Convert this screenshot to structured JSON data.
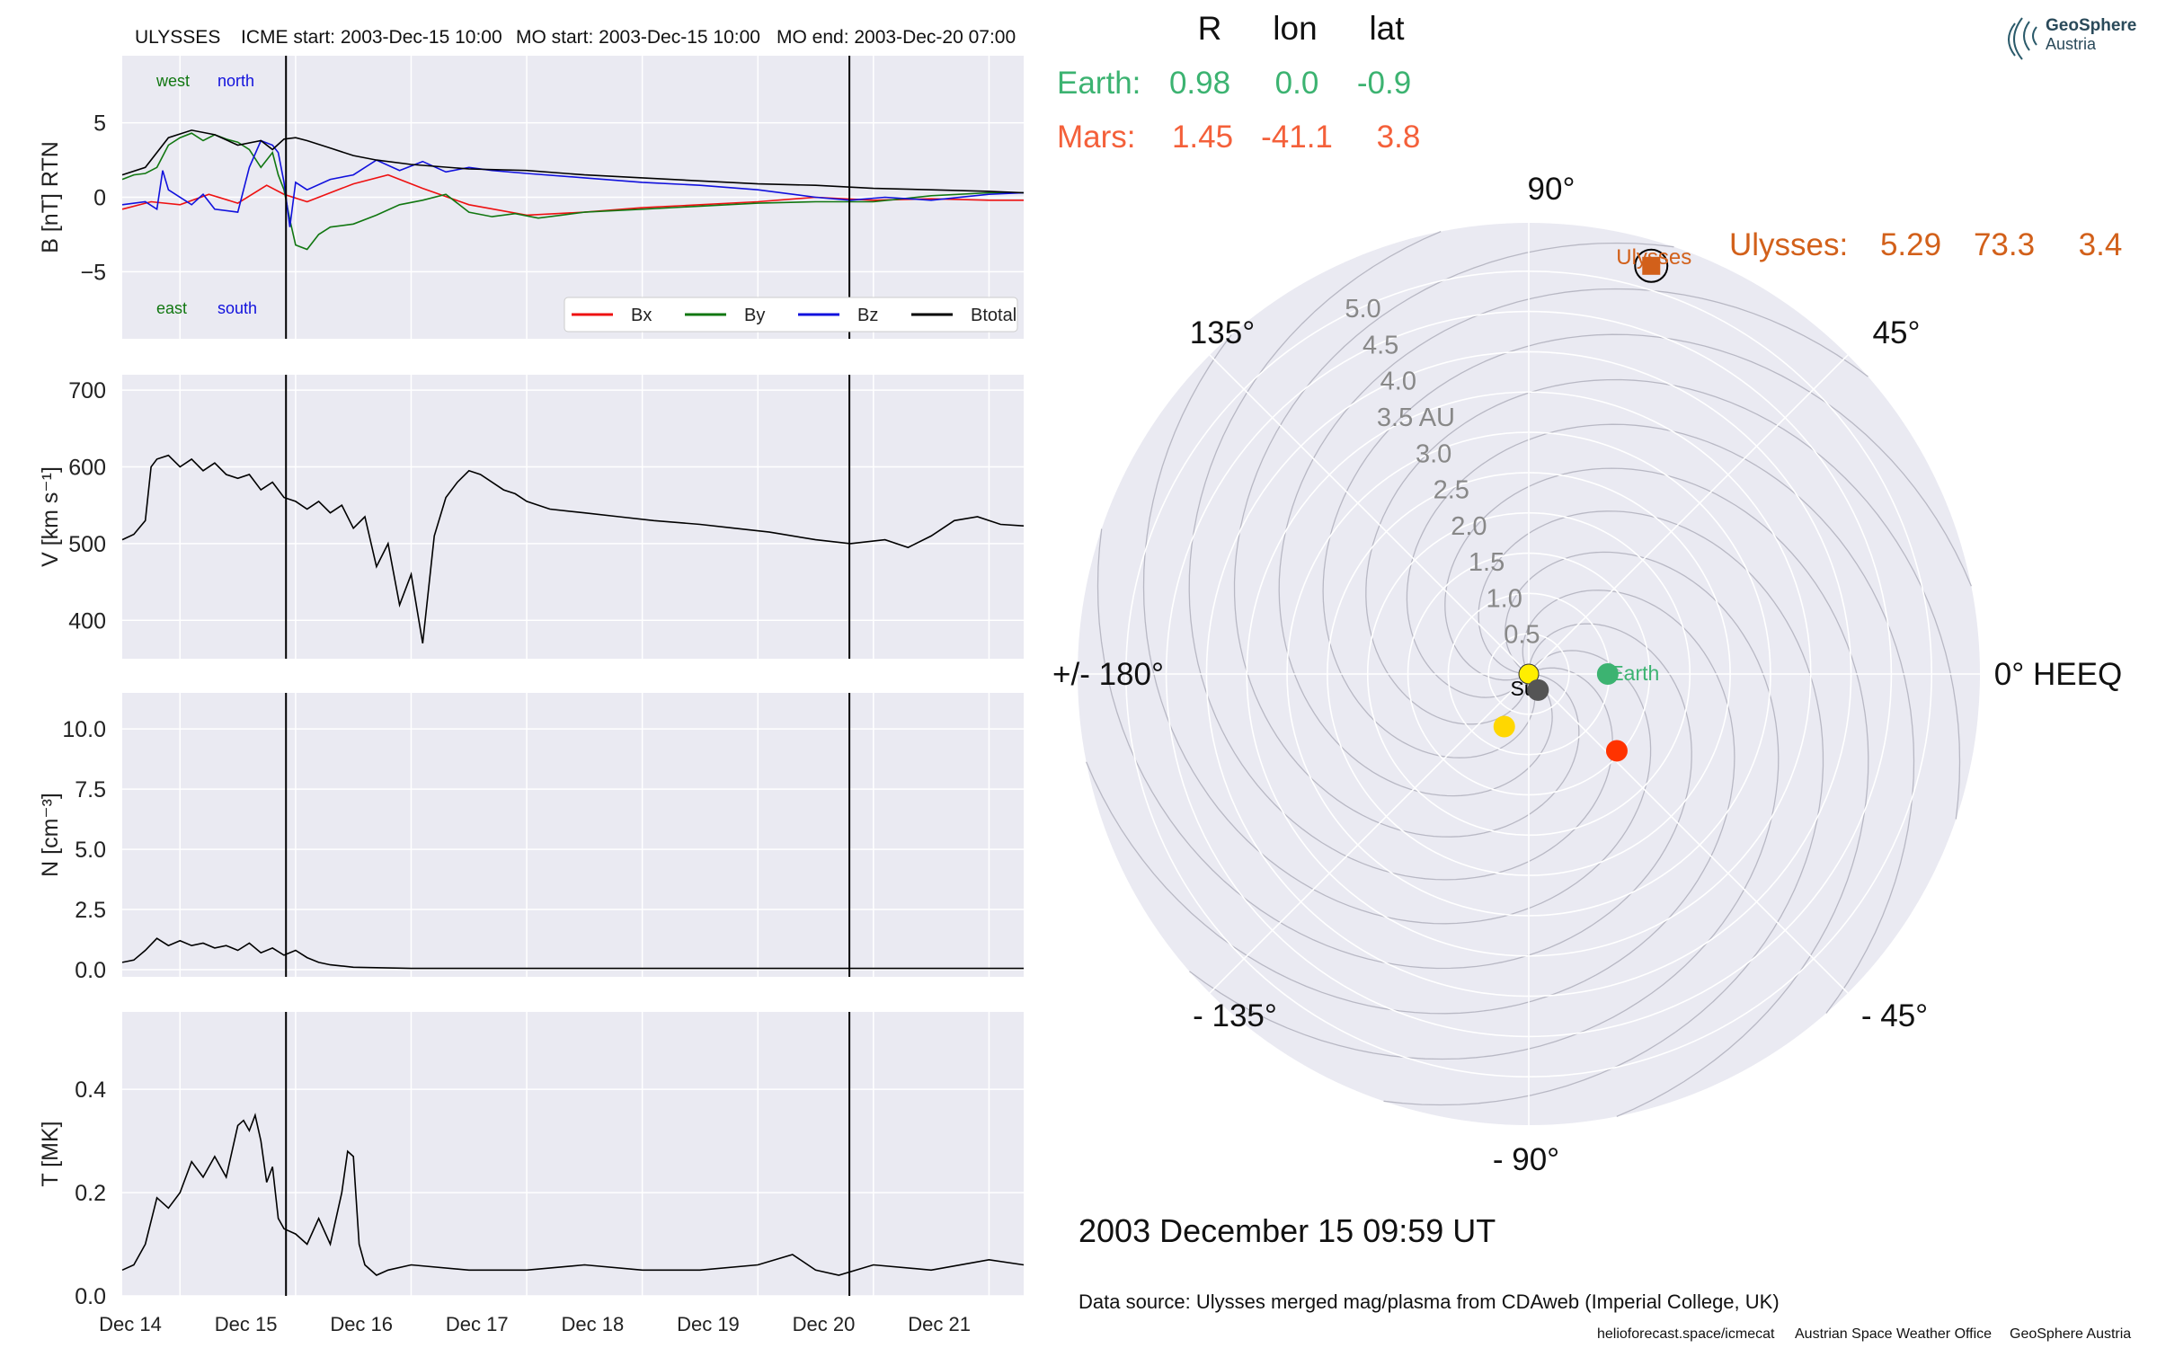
{
  "header": {
    "spacecraft": "ULYSSES",
    "icme_start": "ICME start: 2003-Dec-15 10:00",
    "mo_start": "MO start: 2003-Dec-15 10:00",
    "mo_end": "MO end: 2003-Dec-20 07:00"
  },
  "colors": {
    "bx": "#ee1111",
    "by": "#117711",
    "bz": "#1111dd",
    "btotal": "#000000",
    "earth": "#3cb371",
    "mars": "#f4603a",
    "ulysses": "#d2601a",
    "sun": "#ffee00",
    "panel_bg": "#eaeaf2",
    "grid": "#ffffff"
  },
  "logo": {
    "line1": "GeoSphere",
    "line2": "Austria"
  },
  "positions_table": {
    "headers": [
      "R",
      "lon",
      "lat"
    ],
    "earth": {
      "name": "Earth:",
      "R": "0.98",
      "lon": "0.0",
      "lat": "-0.9"
    },
    "mars": {
      "name": "Mars:",
      "R": "1.45",
      "lon": "-41.1",
      "lat": "3.8"
    },
    "ulysses": {
      "name": "Ulysses:",
      "R": "5.29",
      "lon": "73.3",
      "lat": "3.4"
    }
  },
  "timestamp": "2003 December 15  09:59 UT",
  "data_source": "Data source: Ulysses merged mag/plasma from CDAweb (Imperial College, UK)",
  "footer": {
    "site": "helioforecast.space/icmecat",
    "office": "Austrian Space Weather Office",
    "org": "GeoSphere Austria"
  },
  "chart_data": [
    {
      "type": "line",
      "ylabel": "B [nT] RTN",
      "ylim": [
        -9.5,
        9.5
      ],
      "yticks": [
        -5,
        0,
        5
      ],
      "ytick_labels": [
        "−5",
        "0",
        "5"
      ],
      "annotations": [
        "west",
        "north",
        "east",
        "south"
      ],
      "legend": [
        "Bx",
        "By",
        "Bz",
        "Btotal"
      ],
      "legend_position": "bottom-right",
      "x_range": [
        0,
        7.8
      ],
      "vlines": [
        1.417,
        6.292
      ],
      "series": [
        {
          "name": "Bx",
          "x": [
            0,
            0.25,
            0.5,
            0.75,
            1.0,
            1.25,
            1.4,
            1.6,
            1.8,
            2.0,
            2.3,
            2.6,
            3.0,
            3.5,
            4.0,
            4.5,
            5.0,
            5.5,
            6.0,
            6.5,
            7.0,
            7.5,
            7.8
          ],
          "y": [
            -0.8,
            -0.3,
            -0.5,
            0.2,
            -0.4,
            0.8,
            0.2,
            -0.3,
            0.3,
            0.9,
            1.5,
            0.6,
            -0.5,
            -1.2,
            -1.0,
            -0.7,
            -0.5,
            -0.3,
            0.0,
            -0.2,
            -0.1,
            -0.2,
            -0.2
          ]
        },
        {
          "name": "By",
          "x": [
            0,
            0.1,
            0.2,
            0.3,
            0.4,
            0.5,
            0.6,
            0.7,
            0.8,
            0.9,
            1.0,
            1.1,
            1.2,
            1.3,
            1.35,
            1.4,
            1.45,
            1.5,
            1.6,
            1.7,
            1.8,
            2.0,
            2.2,
            2.4,
            2.6,
            2.8,
            3.0,
            3.2,
            3.4,
            3.6,
            3.8,
            4.0,
            4.5,
            5.0,
            5.5,
            6.0,
            6.5,
            7.0,
            7.5,
            7.8
          ],
          "y": [
            1.2,
            1.5,
            1.6,
            2.0,
            3.5,
            4.0,
            4.3,
            3.8,
            4.2,
            3.9,
            3.7,
            3.2,
            2.0,
            3.0,
            1.5,
            0.5,
            -1.5,
            -3.2,
            -3.5,
            -2.5,
            -2.0,
            -1.8,
            -1.2,
            -0.5,
            -0.2,
            0.2,
            -1.0,
            -1.3,
            -1.1,
            -1.4,
            -1.2,
            -1.0,
            -0.8,
            -0.6,
            -0.4,
            -0.3,
            -0.3,
            0.1,
            0.3,
            0.3
          ]
        },
        {
          "name": "Bz",
          "x": [
            0,
            0.2,
            0.3,
            0.35,
            0.4,
            0.6,
            0.7,
            0.8,
            1.0,
            1.1,
            1.2,
            1.3,
            1.35,
            1.4,
            1.45,
            1.5,
            1.6,
            1.8,
            2.0,
            2.2,
            2.4,
            2.6,
            2.8,
            3.0,
            3.2,
            3.5,
            4.0,
            4.5,
            5.0,
            5.5,
            6.0,
            6.3,
            6.6,
            7.0,
            7.5,
            7.8
          ],
          "y": [
            -0.5,
            -0.3,
            -0.8,
            1.8,
            0.5,
            -0.5,
            0.2,
            -0.8,
            -1.0,
            2.0,
            3.8,
            3.5,
            3.0,
            1.0,
            -2.0,
            1.0,
            0.5,
            1.2,
            1.5,
            2.5,
            1.8,
            2.4,
            1.7,
            2.0,
            1.8,
            1.6,
            1.3,
            1.0,
            0.8,
            0.5,
            0.0,
            -0.2,
            0.0,
            -0.2,
            0.2,
            0.3
          ]
        },
        {
          "name": "Btotal",
          "x": [
            0,
            0.2,
            0.4,
            0.6,
            0.8,
            1.0,
            1.2,
            1.3,
            1.4,
            1.5,
            1.6,
            1.8,
            2.0,
            2.2,
            2.5,
            3.0,
            3.5,
            4.0,
            4.5,
            5.0,
            5.5,
            6.0,
            6.5,
            7.0,
            7.5,
            7.8
          ],
          "y": [
            1.5,
            2.0,
            4.0,
            4.5,
            4.2,
            3.5,
            3.8,
            3.2,
            3.9,
            4.0,
            3.8,
            3.3,
            2.8,
            2.5,
            2.2,
            1.9,
            1.8,
            1.5,
            1.3,
            1.1,
            0.9,
            0.8,
            0.6,
            0.5,
            0.4,
            0.3
          ]
        }
      ]
    },
    {
      "type": "line",
      "ylabel": "V [km s⁻¹]",
      "ylim": [
        350,
        720
      ],
      "yticks": [
        400,
        500,
        600,
        700
      ],
      "x_range": [
        0,
        7.8
      ],
      "vlines": [
        1.417,
        6.292
      ],
      "series": [
        {
          "name": "V",
          "x": [
            0,
            0.1,
            0.2,
            0.25,
            0.3,
            0.4,
            0.5,
            0.6,
            0.7,
            0.8,
            0.9,
            1.0,
            1.1,
            1.2,
            1.3,
            1.4,
            1.5,
            1.6,
            1.7,
            1.8,
            1.9,
            2.0,
            2.1,
            2.2,
            2.3,
            2.4,
            2.5,
            2.6,
            2.7,
            2.8,
            2.9,
            3.0,
            3.1,
            3.2,
            3.3,
            3.4,
            3.5,
            3.7,
            4.0,
            4.3,
            4.6,
            5.0,
            5.3,
            5.6,
            6.0,
            6.3,
            6.6,
            6.8,
            7.0,
            7.2,
            7.4,
            7.6,
            7.8
          ],
          "y": [
            505,
            512,
            530,
            600,
            610,
            615,
            600,
            610,
            595,
            605,
            590,
            585,
            590,
            570,
            580,
            560,
            555,
            545,
            555,
            540,
            550,
            520,
            535,
            470,
            500,
            420,
            460,
            370,
            510,
            560,
            580,
            595,
            590,
            580,
            570,
            565,
            555,
            545,
            540,
            535,
            530,
            525,
            520,
            515,
            505,
            500,
            505,
            495,
            510,
            530,
            535,
            525,
            523
          ]
        }
      ]
    },
    {
      "type": "line",
      "ylabel": "N [cm⁻³]",
      "ylim": [
        -0.3,
        11.5
      ],
      "yticks": [
        0,
        2.5,
        5,
        7.5,
        10
      ],
      "ytick_labels": [
        "0.0",
        "2.5",
        "5.0",
        "7.5",
        "10.0"
      ],
      "x_range": [
        0,
        7.8
      ],
      "vlines": [
        1.417,
        6.292
      ],
      "series": [
        {
          "name": "N",
          "x": [
            0,
            0.1,
            0.2,
            0.3,
            0.4,
            0.5,
            0.6,
            0.7,
            0.8,
            0.9,
            1.0,
            1.1,
            1.2,
            1.3,
            1.4,
            1.5,
            1.6,
            1.7,
            1.8,
            1.9,
            2.0,
            2.5,
            3.0,
            3.5,
            4.0,
            5.0,
            6.0,
            7.0,
            7.8
          ],
          "y": [
            0.3,
            0.4,
            0.8,
            1.3,
            1.0,
            1.2,
            1.0,
            1.1,
            0.9,
            1.0,
            0.8,
            1.1,
            0.7,
            0.9,
            0.6,
            0.8,
            0.5,
            0.3,
            0.2,
            0.15,
            0.1,
            0.05,
            0.05,
            0.05,
            0.05,
            0.05,
            0.05,
            0.05,
            0.05
          ]
        }
      ]
    },
    {
      "type": "line",
      "ylabel": "T [MK]",
      "ylim": [
        0,
        0.55
      ],
      "yticks": [
        0,
        0.2,
        0.4
      ],
      "ytick_labels": [
        "0.0",
        "0.2",
        "0.4"
      ],
      "xtick_labels": [
        "Dec 14",
        "Dec 15",
        "Dec 16",
        "Dec 17",
        "Dec 18",
        "Dec 19",
        "Dec 20",
        "Dec 21"
      ],
      "x_range": [
        0,
        7.8
      ],
      "vlines": [
        1.417,
        6.292
      ],
      "series": [
        {
          "name": "T",
          "x": [
            0,
            0.1,
            0.2,
            0.3,
            0.4,
            0.5,
            0.6,
            0.7,
            0.8,
            0.9,
            1.0,
            1.05,
            1.1,
            1.15,
            1.2,
            1.25,
            1.3,
            1.35,
            1.4,
            1.5,
            1.6,
            1.7,
            1.8,
            1.9,
            1.95,
            2.0,
            2.05,
            2.1,
            2.2,
            2.3,
            2.5,
            3.0,
            3.5,
            4.0,
            4.5,
            5.0,
            5.5,
            5.8,
            6.0,
            6.2,
            6.5,
            7.0,
            7.5,
            7.8
          ],
          "y": [
            0.05,
            0.06,
            0.1,
            0.19,
            0.17,
            0.2,
            0.26,
            0.23,
            0.27,
            0.23,
            0.33,
            0.34,
            0.32,
            0.35,
            0.3,
            0.22,
            0.25,
            0.15,
            0.13,
            0.12,
            0.1,
            0.15,
            0.1,
            0.2,
            0.28,
            0.27,
            0.1,
            0.06,
            0.04,
            0.05,
            0.06,
            0.05,
            0.05,
            0.06,
            0.05,
            0.05,
            0.06,
            0.08,
            0.05,
            0.04,
            0.06,
            0.05,
            0.07,
            0.06
          ]
        }
      ]
    },
    {
      "type": "scatter",
      "projection": "polar",
      "r_ticks": [
        0.5,
        1.0,
        1.5,
        2.0,
        2.5,
        3.0,
        3.5,
        4.0,
        4.5,
        5.0
      ],
      "r_tick_labels": [
        "0.5",
        "1.0",
        "1.5",
        "2.0",
        "2.5",
        "3.0",
        "3.5 AU",
        "4.0",
        "4.5",
        "5.0"
      ],
      "r_max": 5.6,
      "angle_labels": {
        "0": "0° HEEQ",
        "45": "45°",
        "90": "90°",
        "135": "135°",
        "180": "+/- 180°",
        "-135": "- 135°",
        "-90": "- 90°",
        "-45": "- 45°"
      },
      "points": [
        {
          "name": "Sun",
          "r": 0.0,
          "lon": 0,
          "color": "#ffee00",
          "label": "Sun"
        },
        {
          "name": "Earth",
          "r": 0.98,
          "lon": 0.0,
          "color": "#3cb371",
          "label": "Earth"
        },
        {
          "name": "Mars",
          "r": 1.45,
          "lon": -41.1,
          "color": "#ff3300",
          "label": ""
        },
        {
          "name": "gray",
          "r": 0.23,
          "lon": -60,
          "color": "#555555",
          "label": ""
        },
        {
          "name": "yellow2",
          "r": 0.72,
          "lon": -115,
          "color": "#ffd700",
          "label": ""
        },
        {
          "name": "Ulysses",
          "r": 5.29,
          "lon": 73.3,
          "color": "#d2601a",
          "label": "Ulysses"
        }
      ]
    }
  ]
}
